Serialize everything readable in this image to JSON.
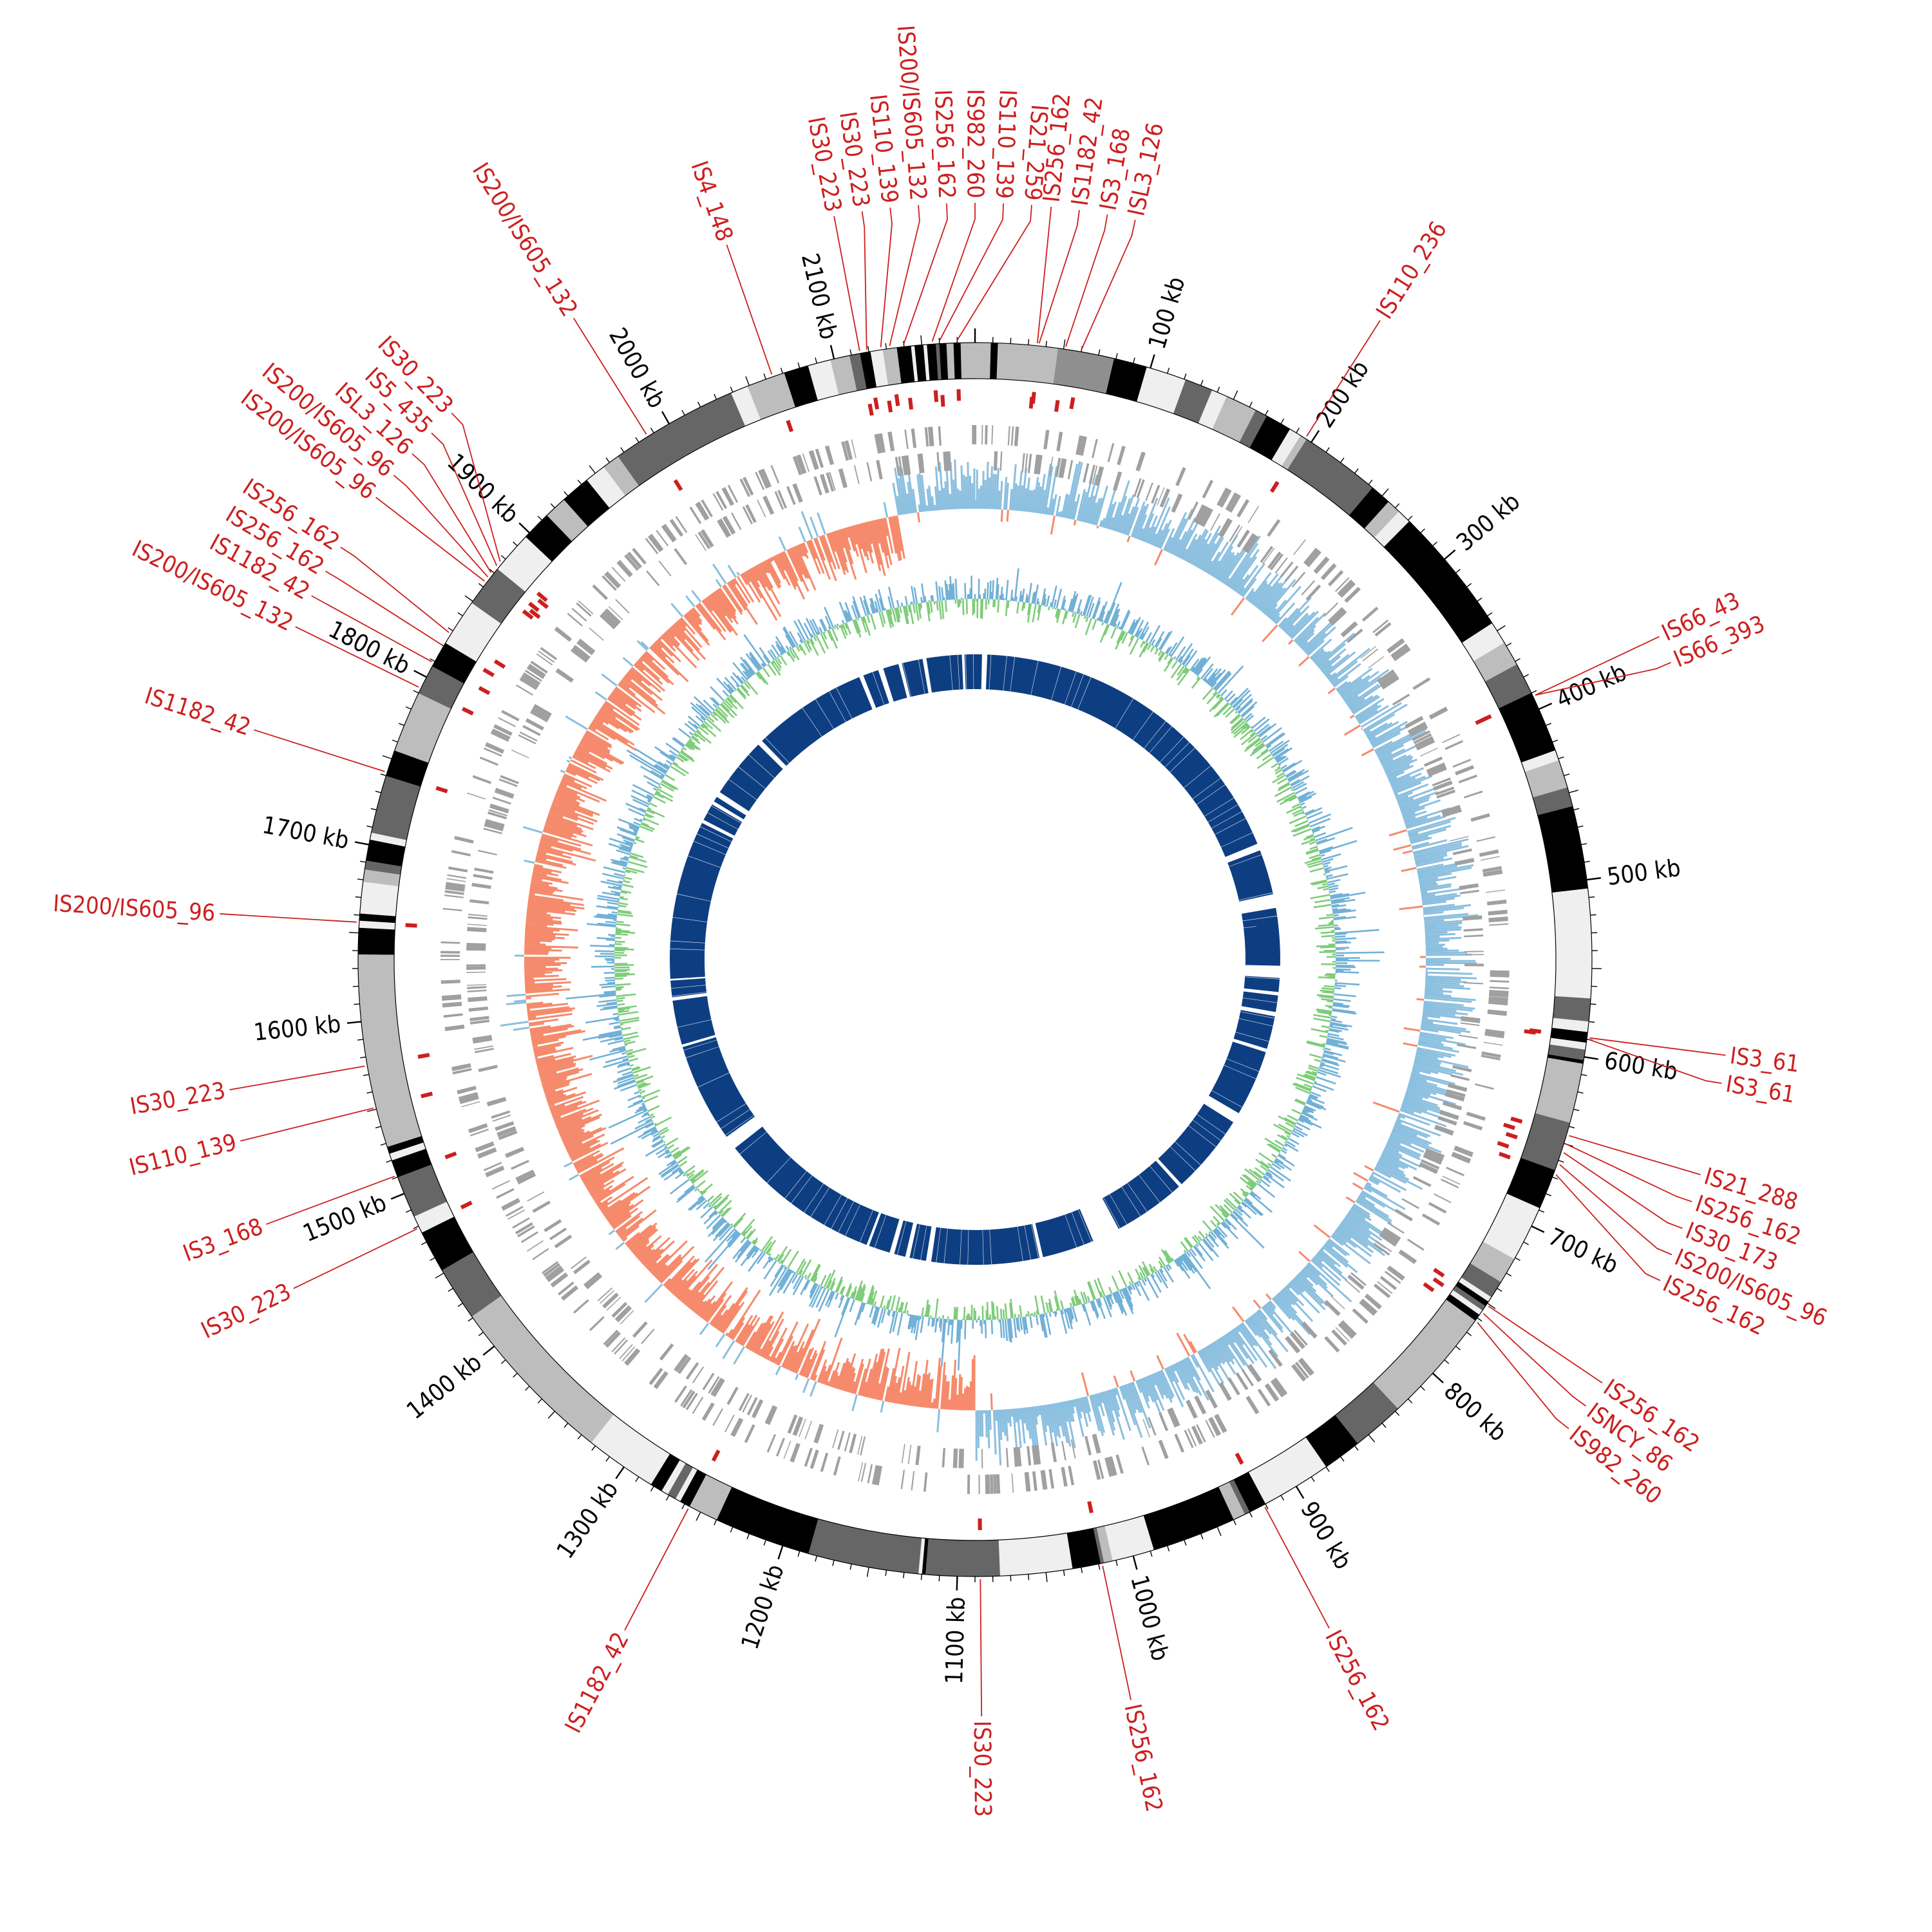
{
  "genome": {
    "length_kb": 2180,
    "tick_minor_kb": 10,
    "label_format": "{v} kb"
  },
  "colors": {
    "is_feature": "#cc1f1f",
    "gene_gray": "#a0a0a0",
    "gc_skew_positive": "#8bbfdf",
    "gc_skew_negative": "#f58b6c",
    "gc_content_blue": "#72b1d6",
    "gc_content_green": "#7fcc7a",
    "homology_blocks": "#0e3e82",
    "axis": "#000000"
  },
  "kb_labels": [
    {
      "value": 100,
      "text": "100 kb"
    },
    {
      "value": 200,
      "text": "200 kb"
    },
    {
      "value": 300,
      "text": "300 kb"
    },
    {
      "value": 400,
      "text": "400 kb"
    },
    {
      "value": 500,
      "text": "500 kb"
    },
    {
      "value": 600,
      "text": "600 kb"
    },
    {
      "value": 700,
      "text": "700 kb"
    },
    {
      "value": 800,
      "text": "800 kb"
    },
    {
      "value": 900,
      "text": "900 kb"
    },
    {
      "value": 1000,
      "text": "1000 kb"
    },
    {
      "value": 1100,
      "text": "1100 kb"
    },
    {
      "value": 1200,
      "text": "1200 kb"
    },
    {
      "value": 1300,
      "text": "1300 kb"
    },
    {
      "value": 1400,
      "text": "1400 kb"
    },
    {
      "value": 1500,
      "text": "1500 kb"
    },
    {
      "value": 1600,
      "text": "1600 kb"
    },
    {
      "value": 1700,
      "text": "1700 kb"
    },
    {
      "value": 1800,
      "text": "1800 kb"
    },
    {
      "value": 1900,
      "text": "1900 kb"
    },
    {
      "value": 2000,
      "text": "2000 kb"
    },
    {
      "value": 2100,
      "text": "2100 kb"
    }
  ],
  "karyotype_bands": [
    {
      "start": 0,
      "end": 9,
      "shade": "light"
    },
    {
      "start": 9,
      "end": 13,
      "shade": "black"
    },
    {
      "start": 13,
      "end": 47,
      "shade": "light"
    },
    {
      "start": 47,
      "end": 79,
      "shade": "mid"
    },
    {
      "start": 79,
      "end": 98,
      "shade": "black"
    },
    {
      "start": 98,
      "end": 121,
      "shade": "white"
    },
    {
      "start": 121,
      "end": 137,
      "shade": "dark"
    },
    {
      "start": 137,
      "end": 146,
      "shade": "white"
    },
    {
      "start": 146,
      "end": 164,
      "shade": "light"
    },
    {
      "start": 164,
      "end": 171,
      "shade": "dark"
    },
    {
      "start": 171,
      "end": 186,
      "shade": "black"
    },
    {
      "start": 186,
      "end": 193,
      "shade": "white"
    },
    {
      "start": 193,
      "end": 197,
      "shade": "light"
    },
    {
      "start": 197,
      "end": 243,
      "shade": "dark"
    },
    {
      "start": 243,
      "end": 255,
      "shade": "black"
    },
    {
      "start": 255,
      "end": 263,
      "shade": "light"
    },
    {
      "start": 263,
      "end": 271,
      "shade": "white"
    },
    {
      "start": 271,
      "end": 345,
      "shade": "black"
    },
    {
      "start": 345,
      "end": 358,
      "shade": "white"
    },
    {
      "start": 358,
      "end": 372,
      "shade": "light"
    },
    {
      "start": 372,
      "end": 390,
      "shade": "dark"
    },
    {
      "start": 390,
      "end": 425,
      "shade": "black"
    },
    {
      "start": 425,
      "end": 431,
      "shade": "white"
    },
    {
      "start": 431,
      "end": 447,
      "shade": "light"
    },
    {
      "start": 447,
      "end": 458,
      "shade": "dark"
    },
    {
      "start": 458,
      "end": 505,
      "shade": "black"
    },
    {
      "start": 505,
      "end": 567,
      "shade": "white"
    },
    {
      "start": 567,
      "end": 580,
      "shade": "dark"
    },
    {
      "start": 580,
      "end": 586,
      "shade": "white"
    },
    {
      "start": 586,
      "end": 592,
      "shade": "black"
    },
    {
      "start": 592,
      "end": 596,
      "shade": "white"
    },
    {
      "start": 596,
      "end": 602,
      "shade": "dark"
    },
    {
      "start": 602,
      "end": 604,
      "shade": "black"
    },
    {
      "start": 604,
      "end": 638,
      "shade": "light"
    },
    {
      "start": 638,
      "end": 666,
      "shade": "dark"
    },
    {
      "start": 666,
      "end": 689,
      "shade": "black"
    },
    {
      "start": 689,
      "end": 721,
      "shade": "white"
    },
    {
      "start": 721,
      "end": 736,
      "shade": "light"
    },
    {
      "start": 736,
      "end": 746,
      "shade": "dark"
    },
    {
      "start": 746,
      "end": 749,
      "shade": "white"
    },
    {
      "start": 749,
      "end": 752,
      "shade": "black"
    },
    {
      "start": 752,
      "end": 755,
      "shade": "dark"
    },
    {
      "start": 755,
      "end": 758,
      "shade": "white"
    },
    {
      "start": 758,
      "end": 762,
      "shade": "black"
    },
    {
      "start": 762,
      "end": 828,
      "shade": "light"
    },
    {
      "start": 828,
      "end": 858,
      "shade": "dark"
    },
    {
      "start": 858,
      "end": 880,
      "shade": "black"
    },
    {
      "start": 880,
      "end": 920,
      "shade": "white"
    },
    {
      "start": 920,
      "end": 930,
      "shade": "black"
    },
    {
      "start": 930,
      "end": 933,
      "shade": "dark"
    },
    {
      "start": 933,
      "end": 940,
      "shade": "light"
    },
    {
      "start": 940,
      "end": 988,
      "shade": "black"
    },
    {
      "start": 988,
      "end": 1012,
      "shade": "white"
    },
    {
      "start": 1012,
      "end": 1017,
      "shade": "light"
    },
    {
      "start": 1017,
      "end": 1019,
      "shade": "dark"
    },
    {
      "start": 1019,
      "end": 1035,
      "shade": "black"
    },
    {
      "start": 1035,
      "end": 1076,
      "shade": "white"
    },
    {
      "start": 1076,
      "end": 1118,
      "shade": "dark"
    },
    {
      "start": 1118,
      "end": 1120,
      "shade": "black"
    },
    {
      "start": 1120,
      "end": 1122,
      "shade": "white"
    },
    {
      "start": 1122,
      "end": 1185,
      "shade": "dark"
    },
    {
      "start": 1185,
      "end": 1240,
      "shade": "black"
    },
    {
      "start": 1240,
      "end": 1257,
      "shade": "light"
    },
    {
      "start": 1257,
      "end": 1263,
      "shade": "black"
    },
    {
      "start": 1263,
      "end": 1266,
      "shade": "white"
    },
    {
      "start": 1266,
      "end": 1271,
      "shade": "dark"
    },
    {
      "start": 1271,
      "end": 1275,
      "shade": "white"
    },
    {
      "start": 1275,
      "end": 1282,
      "shade": "black"
    },
    {
      "start": 1282,
      "end": 1289,
      "shade": "white"
    },
    {
      "start": 1289,
      "end": 1323,
      "shade": "white"
    },
    {
      "start": 1323,
      "end": 1421,
      "shade": "light"
    },
    {
      "start": 1421,
      "end": 1452,
      "shade": "dark"
    },
    {
      "start": 1452,
      "end": 1476,
      "shade": "black"
    },
    {
      "start": 1476,
      "end": 1486,
      "shade": "white"
    },
    {
      "start": 1486,
      "end": 1510,
      "shade": "dark"
    },
    {
      "start": 1510,
      "end": 1520,
      "shade": "black"
    },
    {
      "start": 1520,
      "end": 1524,
      "shade": "white"
    },
    {
      "start": 1524,
      "end": 1528,
      "shade": "black"
    },
    {
      "start": 1528,
      "end": 1638,
      "shade": "light"
    },
    {
      "start": 1638,
      "end": 1653,
      "shade": "black"
    },
    {
      "start": 1653,
      "end": 1657,
      "shade": "white"
    },
    {
      "start": 1657,
      "end": 1661,
      "shade": "black"
    },
    {
      "start": 1661,
      "end": 1679,
      "shade": "white"
    },
    {
      "start": 1679,
      "end": 1686,
      "shade": "light"
    },
    {
      "start": 1686,
      "end": 1691,
      "shade": "dark"
    },
    {
      "start": 1691,
      "end": 1703,
      "shade": "black"
    },
    {
      "start": 1703,
      "end": 1707,
      "shade": "white"
    },
    {
      "start": 1707,
      "end": 1740,
      "shade": "dark"
    },
    {
      "start": 1740,
      "end": 1755,
      "shade": "black"
    },
    {
      "start": 1755,
      "end": 1790,
      "shade": "light"
    },
    {
      "start": 1790,
      "end": 1807,
      "shade": "dark"
    },
    {
      "start": 1807,
      "end": 1822,
      "shade": "black"
    },
    {
      "start": 1822,
      "end": 1849,
      "shade": "white"
    },
    {
      "start": 1849,
      "end": 1873,
      "shade": "dark"
    },
    {
      "start": 1873,
      "end": 1897,
      "shade": "white"
    },
    {
      "start": 1897,
      "end": 1914,
      "shade": "black"
    },
    {
      "start": 1914,
      "end": 1927,
      "shade": "light"
    },
    {
      "start": 1927,
      "end": 1944,
      "shade": "black"
    },
    {
      "start": 1944,
      "end": 1956,
      "shade": "white"
    },
    {
      "start": 1956,
      "end": 1966,
      "shade": "light"
    },
    {
      "start": 1966,
      "end": 2039,
      "shade": "dark"
    },
    {
      "start": 2039,
      "end": 2049,
      "shade": "white"
    },
    {
      "start": 2049,
      "end": 2071,
      "shade": "light"
    },
    {
      "start": 2071,
      "end": 2085,
      "shade": "black"
    },
    {
      "start": 2085,
      "end": 2098,
      "shade": "white"
    },
    {
      "start": 2098,
      "end": 2109,
      "shade": "light"
    },
    {
      "start": 2109,
      "end": 2115,
      "shade": "dark"
    },
    {
      "start": 2115,
      "end": 2121,
      "shade": "black"
    },
    {
      "start": 2121,
      "end": 2128,
      "shade": "white"
    },
    {
      "start": 2128,
      "end": 2136,
      "shade": "light"
    },
    {
      "start": 2136,
      "end": 2144,
      "shade": "black"
    },
    {
      "start": 2144,
      "end": 2146,
      "shade": "white"
    },
    {
      "start": 2146,
      "end": 2151,
      "shade": "black"
    },
    {
      "start": 2151,
      "end": 2153,
      "shade": "white"
    },
    {
      "start": 2153,
      "end": 2158,
      "shade": "black"
    },
    {
      "start": 2158,
      "end": 2160,
      "shade": "dark"
    },
    {
      "start": 2160,
      "end": 2164,
      "shade": "black"
    },
    {
      "start": 2164,
      "end": 2168,
      "shade": "light"
    },
    {
      "start": 2168,
      "end": 2172,
      "shade": "black"
    },
    {
      "start": 2172,
      "end": 2180,
      "shade": "light"
    }
  ],
  "is_elements": [
    {
      "pos": 35,
      "label": "IS256_162"
    },
    {
      "pos": 36,
      "label": "IS1182_42"
    },
    {
      "pos": 51,
      "label": "IS3_168"
    },
    {
      "pos": 60,
      "label": "ISL3_126"
    },
    {
      "pos": 196,
      "label": "IS110_236"
    },
    {
      "pos": 392,
      "label": "IS66_43"
    },
    {
      "pos": 392,
      "label": "IS66_393"
    },
    {
      "pos": 589,
      "label": "IS3_61"
    },
    {
      "pos": 590,
      "label": "IS3_61"
    },
    {
      "pos": 645,
      "label": "IS21_288"
    },
    {
      "pos": 650,
      "label": "IS256_162"
    },
    {
      "pos": 655,
      "label": "IS30_173"
    },
    {
      "pos": 662,
      "label": "IS200/IS605_96"
    },
    {
      "pos": 668,
      "label": "IS256_162"
    },
    {
      "pos": 751,
      "label": "IS256_162"
    },
    {
      "pos": 756,
      "label": "ISNCY_86"
    },
    {
      "pos": 762,
      "label": "IS982_260"
    },
    {
      "pos": 921,
      "label": "IS256_162"
    },
    {
      "pos": 1018,
      "label": "IS256_162"
    },
    {
      "pos": 1087,
      "label": "IS30_223"
    },
    {
      "pos": 1257,
      "label": "IS1182_42"
    },
    {
      "pos": 1479,
      "label": "IS30_223"
    },
    {
      "pos": 1511,
      "label": "IS3_168"
    },
    {
      "pos": 1551,
      "label": "IS110_139"
    },
    {
      "pos": 1575,
      "label": "IS30_223"
    },
    {
      "pos": 1656,
      "label": "IS200/IS605_96"
    },
    {
      "pos": 1742,
      "label": "IS1182_42"
    },
    {
      "pos": 1793,
      "label": "IS200/IS605_132"
    },
    {
      "pos": 1809,
      "label": "IS1182_42"
    },
    {
      "pos": 1820,
      "label": "IS256_162"
    },
    {
      "pos": 1828,
      "label": "IS256_162"
    },
    {
      "pos": 1863,
      "label": "IS200/IS605_96"
    },
    {
      "pos": 1866,
      "label": "IS200/IS605_96"
    },
    {
      "pos": 1869,
      "label": "ISL3_126"
    },
    {
      "pos": 1874,
      "label": "IS5_435"
    },
    {
      "pos": 1877,
      "label": "IS30_223"
    },
    {
      "pos": 1986,
      "label": "IS200/IS605_132"
    },
    {
      "pos": 2064,
      "label": "IS4_148"
    },
    {
      "pos": 2115,
      "label": "IS30_223"
    },
    {
      "pos": 2119,
      "label": "IS30_223"
    },
    {
      "pos": 2127,
      "label": "IS110_139"
    },
    {
      "pos": 2132,
      "label": "IS200/IS605_132"
    },
    {
      "pos": 2140,
      "label": "IS256_162"
    },
    {
      "pos": 2156,
      "label": "IS982_260"
    },
    {
      "pos": 2160,
      "label": "IS110_139"
    },
    {
      "pos": 2170,
      "label": "IS21_259"
    }
  ],
  "homology_gaps_kb": [
    [
      8,
      14
    ],
    [
      410,
      418
    ],
    [
      470,
      486
    ],
    [
      552,
      566
    ],
    [
      582,
      586
    ],
    [
      605,
      610
    ],
    [
      648,
      652
    ],
    [
      728,
      740
    ],
    [
      832,
      836
    ],
    [
      920,
      952
    ],
    [
      1012,
      1016
    ],
    [
      1140,
      1146
    ],
    [
      1165,
      1170
    ],
    [
      1183,
      1188
    ],
    [
      1213,
      1216
    ],
    [
      1404,
      1420
    ],
    [
      1534,
      1537
    ],
    [
      1588,
      1592
    ],
    [
      1611,
      1613
    ],
    [
      1796,
      1800
    ],
    [
      1820,
      1824
    ],
    [
      1830,
      1836
    ],
    [
      1906,
      1912
    ],
    [
      2045,
      2050
    ],
    [
      2068,
      2074
    ],
    [
      2092,
      2096
    ],
    [
      2120,
      2124
    ],
    [
      2165,
      2168
    ]
  ]
}
